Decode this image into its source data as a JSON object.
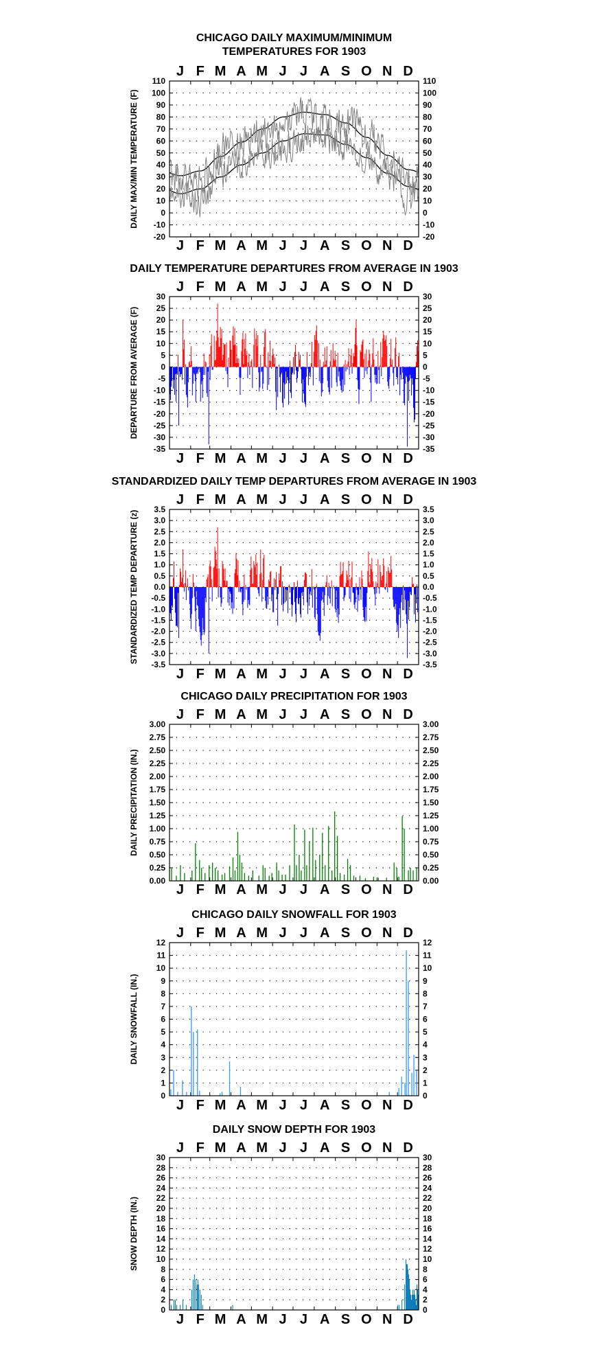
{
  "page": {
    "months": [
      "J",
      "F",
      "M",
      "A",
      "M",
      "J",
      "J",
      "A",
      "S",
      "O",
      "N",
      "D"
    ]
  },
  "chart_data": [
    {
      "id": "temps",
      "type": "line",
      "title_lines": [
        "CHICAGO DAILY MAXIMUM/MINIMUM",
        "TEMPERATURES FOR 1903"
      ],
      "ylabel": "DAILY MAX/MIN TEMPERATURE (F)",
      "ylim": [
        -20,
        110
      ],
      "ytick_step": 10,
      "grid": true,
      "series": [
        {
          "role": "normal_high",
          "color": "#000000",
          "values_rule": "monthly_curve",
          "monthly": [
            31,
            35,
            47,
            59,
            70,
            80,
            84,
            82,
            75,
            63,
            48,
            36
          ]
        },
        {
          "role": "normal_low",
          "color": "#000000",
          "values_rule": "monthly_curve",
          "monthly": [
            16,
            20,
            30,
            40,
            50,
            60,
            66,
            65,
            57,
            46,
            33,
            22
          ]
        },
        {
          "role": "daily_max",
          "color": "#808080",
          "monthly_mean": [
            30,
            28,
            52,
            58,
            68,
            70,
            83,
            78,
            75,
            65,
            47,
            27
          ],
          "daily_swing": 14
        },
        {
          "role": "daily_min",
          "color": "#808080",
          "monthly_mean": [
            16,
            10,
            34,
            40,
            50,
            54,
            64,
            62,
            57,
            46,
            32,
            14
          ],
          "daily_swing": 12
        }
      ]
    },
    {
      "id": "departures",
      "type": "bar",
      "title_lines": [
        "DAILY TEMPERATURE DEPARTURES FROM AVERAGE IN 1903"
      ],
      "ylabel": "DEPARTURE FROM AVERAGE (F)",
      "ylim": [
        -35,
        30
      ],
      "ytick_step": 5,
      "grid": true,
      "colors": {
        "positive": "#ff0000",
        "negative": "#0000ff"
      },
      "monthly_mean": [
        -2,
        -8,
        7,
        1,
        2,
        -6,
        -1,
        -3,
        0,
        1,
        0,
        -10
      ],
      "amplitude": 12,
      "extremes": [
        {
          "day": 70,
          "value": 27
        },
        {
          "day": 57,
          "value": -33
        },
        {
          "day": 19,
          "value": 20
        },
        {
          "day": 13,
          "value": -25
        },
        {
          "day": 348,
          "value": -34
        },
        {
          "day": 324,
          "value": 12
        }
      ]
    },
    {
      "id": "standardized",
      "type": "bar",
      "title_lines": [
        "STANDARDIZED DAILY TEMP DEPARTURES FROM AVERAGE IN 1903"
      ],
      "ylabel": "STANDARDIZED TEMP DEPARTURE (z)",
      "ylim": [
        -3.5,
        3.5
      ],
      "ytick_step": 0.5,
      "tick_decimals": 1,
      "grid": true,
      "colors": {
        "positive": "#ff0000",
        "negative": "#0000ff"
      },
      "monthly_mean": [
        -0.2,
        -0.8,
        0.7,
        0.2,
        0.4,
        -0.8,
        -0.2,
        -0.5,
        0.0,
        0.1,
        0.0,
        -1.0
      ],
      "amplitude": 1.2,
      "extremes": [
        {
          "day": 70,
          "value": 2.7
        },
        {
          "day": 57,
          "value": -3.0
        },
        {
          "day": 19,
          "value": 1.7
        },
        {
          "day": 13,
          "value": -2.3
        },
        {
          "day": 348,
          "value": -3.2
        },
        {
          "day": 324,
          "value": 1.4
        }
      ]
    },
    {
      "id": "precip",
      "type": "bar",
      "title_lines": [
        "CHICAGO DAILY PRECIPITATION FOR 1903"
      ],
      "ylabel": "DAILY PRECIPITATION (IN.)",
      "ylim": [
        0,
        3.0
      ],
      "ytick_step": 0.25,
      "tick_decimals": 2,
      "grid": true,
      "colors": {
        "bar": "#008000"
      },
      "events": [
        [
          3,
          0.25
        ],
        [
          10,
          0.1
        ],
        [
          16,
          0.3
        ],
        [
          22,
          0.15
        ],
        [
          33,
          0.2
        ],
        [
          38,
          0.72
        ],
        [
          44,
          0.4
        ],
        [
          47,
          0.25
        ],
        [
          52,
          0.15
        ],
        [
          58,
          0.3
        ],
        [
          63,
          0.35
        ],
        [
          67,
          0.25
        ],
        [
          71,
          0.2
        ],
        [
          77,
          0.12
        ],
        [
          81,
          0.15
        ],
        [
          88,
          0.28
        ],
        [
          93,
          0.45
        ],
        [
          96,
          0.2
        ],
        [
          100,
          0.94
        ],
        [
          103,
          0.5
        ],
        [
          106,
          0.35
        ],
        [
          110,
          0.15
        ],
        [
          116,
          0.1
        ],
        [
          122,
          0.2
        ],
        [
          131,
          0.1
        ],
        [
          137,
          0.3
        ],
        [
          140,
          0.25
        ],
        [
          146,
          0.1
        ],
        [
          150,
          0.15
        ],
        [
          157,
          0.35
        ],
        [
          160,
          0.2
        ],
        [
          165,
          0.12
        ],
        [
          170,
          0.12
        ],
        [
          176,
          0.3
        ],
        [
          183,
          1.08
        ],
        [
          186,
          0.3
        ],
        [
          190,
          0.5
        ],
        [
          193,
          0.2
        ],
        [
          198,
          0.98
        ],
        [
          201,
          0.3
        ],
        [
          205,
          0.76
        ],
        [
          210,
          1.02
        ],
        [
          214,
          0.4
        ],
        [
          220,
          0.5
        ],
        [
          224,
          0.92
        ],
        [
          228,
          0.3
        ],
        [
          233,
          1.05
        ],
        [
          238,
          0.2
        ],
        [
          242,
          1.33
        ],
        [
          246,
          0.86
        ],
        [
          250,
          0.15
        ],
        [
          256,
          0.12
        ],
        [
          261,
          0.42
        ],
        [
          265,
          0.3
        ],
        [
          270,
          0.1
        ],
        [
          279,
          0.1
        ],
        [
          287,
          0.05
        ],
        [
          299,
          0.08
        ],
        [
          306,
          0.06
        ],
        [
          318,
          0.06
        ],
        [
          329,
          0.35
        ],
        [
          333,
          0.25
        ],
        [
          336,
          0.08
        ],
        [
          341,
          1.24
        ],
        [
          344,
          1.0
        ],
        [
          350,
          0.2
        ],
        [
          353,
          0.25
        ],
        [
          357,
          0.2
        ],
        [
          362,
          0.25
        ]
      ]
    },
    {
      "id": "snowfall",
      "type": "bar",
      "title_lines": [
        "CHICAGO DAILY SNOWFALL FOR 1903"
      ],
      "ylabel": "DAILY SNOWFALL (IN.)",
      "ylim": [
        0,
        12
      ],
      "ytick_step": 1,
      "grid": true,
      "colors": {
        "bar": "#3399ff"
      },
      "events": [
        [
          2,
          0.5
        ],
        [
          6,
          2.0
        ],
        [
          12,
          0.3
        ],
        [
          19,
          1.2
        ],
        [
          25,
          0.3
        ],
        [
          32,
          7.0
        ],
        [
          35,
          5.0
        ],
        [
          41,
          5.2
        ],
        [
          44,
          0.4
        ],
        [
          74,
          0.2
        ],
        [
          77,
          0.3
        ],
        [
          88,
          2.7
        ],
        [
          104,
          0.7
        ],
        [
          322,
          0.3
        ],
        [
          336,
          0.6
        ],
        [
          340,
          1.5
        ],
        [
          345,
          1.0
        ],
        [
          347,
          11.4
        ],
        [
          350,
          9.0
        ],
        [
          355,
          1.8
        ],
        [
          358,
          3.2
        ],
        [
          362,
          2.0
        ]
      ]
    },
    {
      "id": "snowdepth",
      "type": "area",
      "title_lines": [
        "DAILY SNOW DEPTH FOR 1903"
      ],
      "ylabel": "SNOW DEPTH (IN.)",
      "ylim": [
        0,
        30
      ],
      "ytick_step": 2,
      "grid": true,
      "colors": {
        "fill": "#0077bb"
      },
      "events": [
        [
          2,
          1
        ],
        [
          6,
          2
        ],
        [
          8,
          2
        ],
        [
          10,
          1
        ],
        [
          15,
          1
        ],
        [
          19,
          2
        ],
        [
          24,
          1
        ],
        [
          32,
          4
        ],
        [
          34,
          6
        ],
        [
          36,
          7
        ],
        [
          38,
          6
        ],
        [
          40,
          5
        ],
        [
          41,
          6
        ],
        [
          42,
          5
        ],
        [
          44,
          4
        ],
        [
          46,
          3
        ],
        [
          48,
          1
        ],
        [
          92,
          1
        ],
        [
          334,
          1
        ],
        [
          336,
          1
        ],
        [
          340,
          2
        ],
        [
          344,
          5
        ],
        [
          346,
          10
        ],
        [
          347,
          9
        ],
        [
          348,
          9
        ],
        [
          349,
          8
        ],
        [
          350,
          7
        ],
        [
          351,
          6
        ],
        [
          352,
          4
        ],
        [
          353,
          3
        ],
        [
          354,
          2
        ],
        [
          355,
          3
        ],
        [
          356,
          4
        ],
        [
          357,
          3
        ],
        [
          358,
          4
        ],
        [
          359,
          3
        ],
        [
          360,
          2
        ],
        [
          361,
          1
        ],
        [
          362,
          5
        ],
        [
          363,
          4
        ],
        [
          364,
          3
        ]
      ]
    }
  ]
}
